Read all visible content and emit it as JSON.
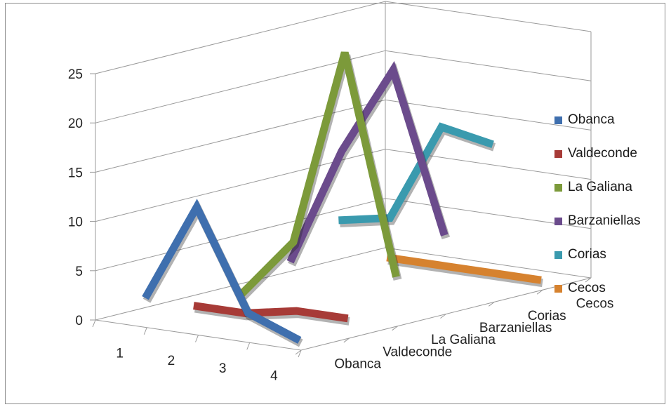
{
  "chart_data": {
    "type": "line",
    "subtype": "3d-line",
    "categories": [
      "1",
      "2",
      "3",
      "4"
    ],
    "depth_categories": [
      "Obanca",
      "Valdeconde",
      "La Galiana",
      "Barzaniellas",
      "Corias",
      "Cecos"
    ],
    "yticks": [
      "0",
      "5",
      "10",
      "15",
      "20",
      "25"
    ],
    "ylim": [
      0,
      25
    ],
    "grid": true,
    "legend_position": "right",
    "series": [
      {
        "name": "Obanca",
        "color": "#3f6fae",
        "values": [
          2,
          12,
          2,
          0
        ]
      },
      {
        "name": "Valdeconde",
        "color": "#a73b37",
        "values": [
          0,
          0,
          1,
          1
        ]
      },
      {
        "name": "La Galiana",
        "color": "#7c9a3a",
        "values": [
          0,
          6,
          26,
          4
        ]
      },
      {
        "name": "Barzaniellas",
        "color": "#6b4b8c",
        "values": [
          2,
          14,
          23,
          7
        ]
      },
      {
        "name": "Corias",
        "color": "#3a9aae",
        "values": [
          5,
          6,
          16,
          15
        ]
      },
      {
        "name": "Cecos",
        "color": "#d6822f",
        "values": [
          0,
          0,
          0,
          0
        ]
      }
    ]
  }
}
